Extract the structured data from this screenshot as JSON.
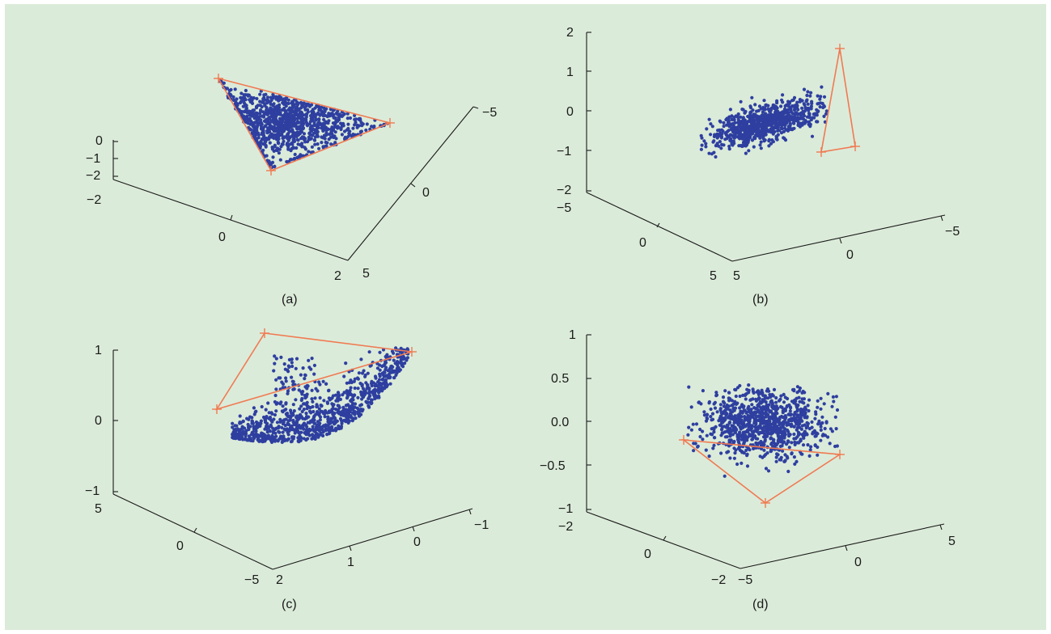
{
  "colors": {
    "background": "#dbebd9",
    "points": "#2e3fa0",
    "simplex": "#f07a52",
    "axes": "#1a1a1a"
  },
  "chart_data": [
    {
      "type": "scatter",
      "subplot_label": "(a)",
      "view": "3d",
      "description_points": "dense 3-D point cloud enclosed by a triangular simplex with 3 marked vertices",
      "axes": {
        "z": {
          "ticks": [
            "0",
            "−1",
            "−2"
          ]
        },
        "x": {
          "ticks": [
            "−2",
            "0",
            "2"
          ]
        },
        "y": {
          "ticks": [
            "5",
            "0",
            "−5"
          ]
        }
      },
      "simplex_vertices": 3
    },
    {
      "type": "scatter",
      "subplot_label": "(b)",
      "view": "3d",
      "axes": {
        "z": {
          "ticks": [
            "2",
            "1",
            "0",
            "−1",
            "−2"
          ]
        },
        "x": {
          "ticks": [
            "−5",
            "0",
            "5"
          ]
        },
        "y": {
          "ticks": [
            "5",
            "0",
            "−5"
          ]
        }
      },
      "simplex_vertices": 3
    },
    {
      "type": "scatter",
      "subplot_label": "(c)",
      "view": "3d",
      "axes": {
        "z": {
          "ticks": [
            "1",
            "0",
            "−1"
          ]
        },
        "x": {
          "ticks": [
            "5",
            "0",
            "−5"
          ]
        },
        "y": {
          "ticks": [
            "2",
            "1",
            "0",
            "−1"
          ]
        }
      },
      "simplex_vertices": 3
    },
    {
      "type": "scatter",
      "subplot_label": "(d)",
      "view": "3d",
      "axes": {
        "z": {
          "ticks": [
            "1",
            "0.5",
            "0.0",
            "−0.5",
            "−1"
          ]
        },
        "x": {
          "ticks": [
            "−2",
            "0",
            "−2"
          ]
        },
        "y": {
          "ticks": [
            "−5",
            "0",
            "5"
          ]
        }
      },
      "simplex_vertices": 3
    }
  ]
}
